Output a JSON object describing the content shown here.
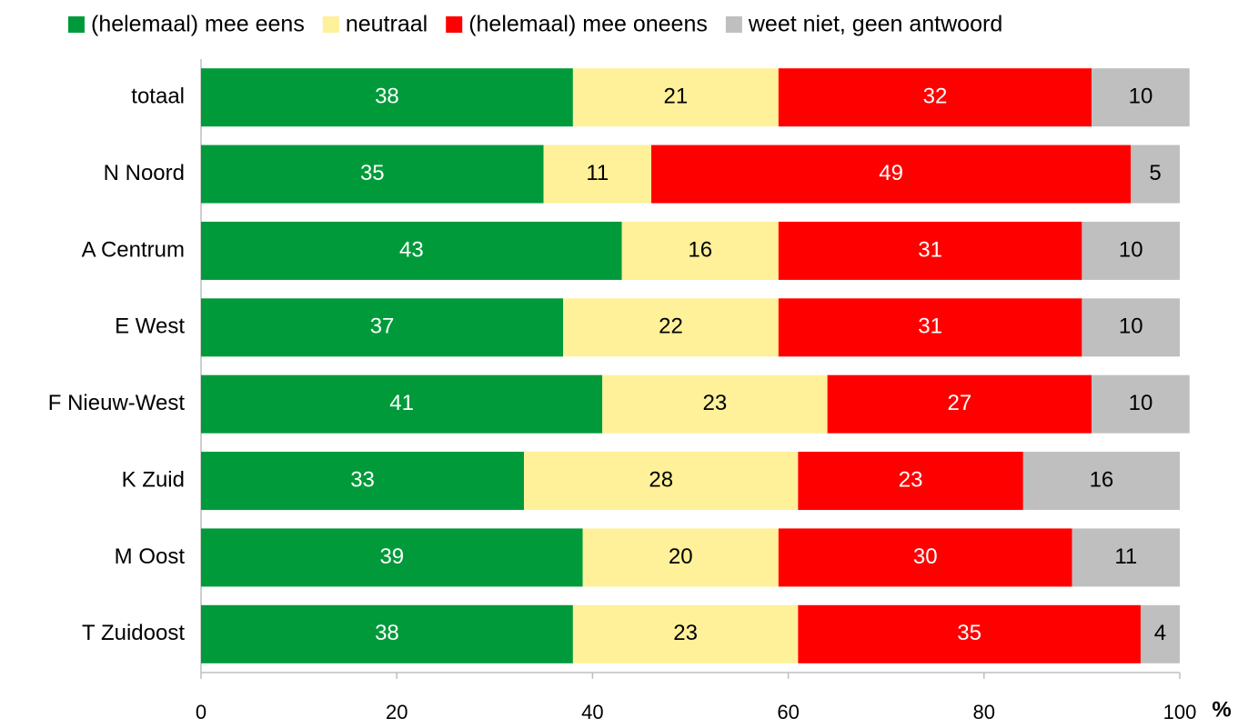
{
  "chart_data": {
    "type": "bar",
    "orientation": "horizontal",
    "stacked": true,
    "categories": [
      "totaal",
      "N Noord",
      "A Centrum",
      "E West",
      "F Nieuw-West",
      "K Zuid",
      "M Oost",
      "T Zuidoost"
    ],
    "series": [
      {
        "name": "(helemaal) mee eens",
        "color": "#009a3a",
        "label_color": "#ffffff",
        "values": [
          38,
          35,
          43,
          37,
          41,
          33,
          39,
          38
        ]
      },
      {
        "name": "neutraal",
        "color": "#fff09a",
        "label_color": "#000000",
        "values": [
          21,
          11,
          16,
          22,
          23,
          28,
          20,
          23
        ]
      },
      {
        "name": "(helemaal) mee oneens",
        "color": "#ff0000",
        "label_color": "#ffffff",
        "values": [
          32,
          49,
          31,
          31,
          27,
          23,
          30,
          35
        ]
      },
      {
        "name": "weet niet, geen antwoord",
        "color": "#bfbfbf",
        "label_color": "#000000",
        "values": [
          10,
          5,
          10,
          10,
          10,
          16,
          11,
          4
        ]
      }
    ],
    "xlim": [
      0,
      100
    ],
    "xticks": [
      0,
      20,
      40,
      60,
      80,
      100
    ],
    "xlabel": "%",
    "legend": "top",
    "grid": false
  }
}
